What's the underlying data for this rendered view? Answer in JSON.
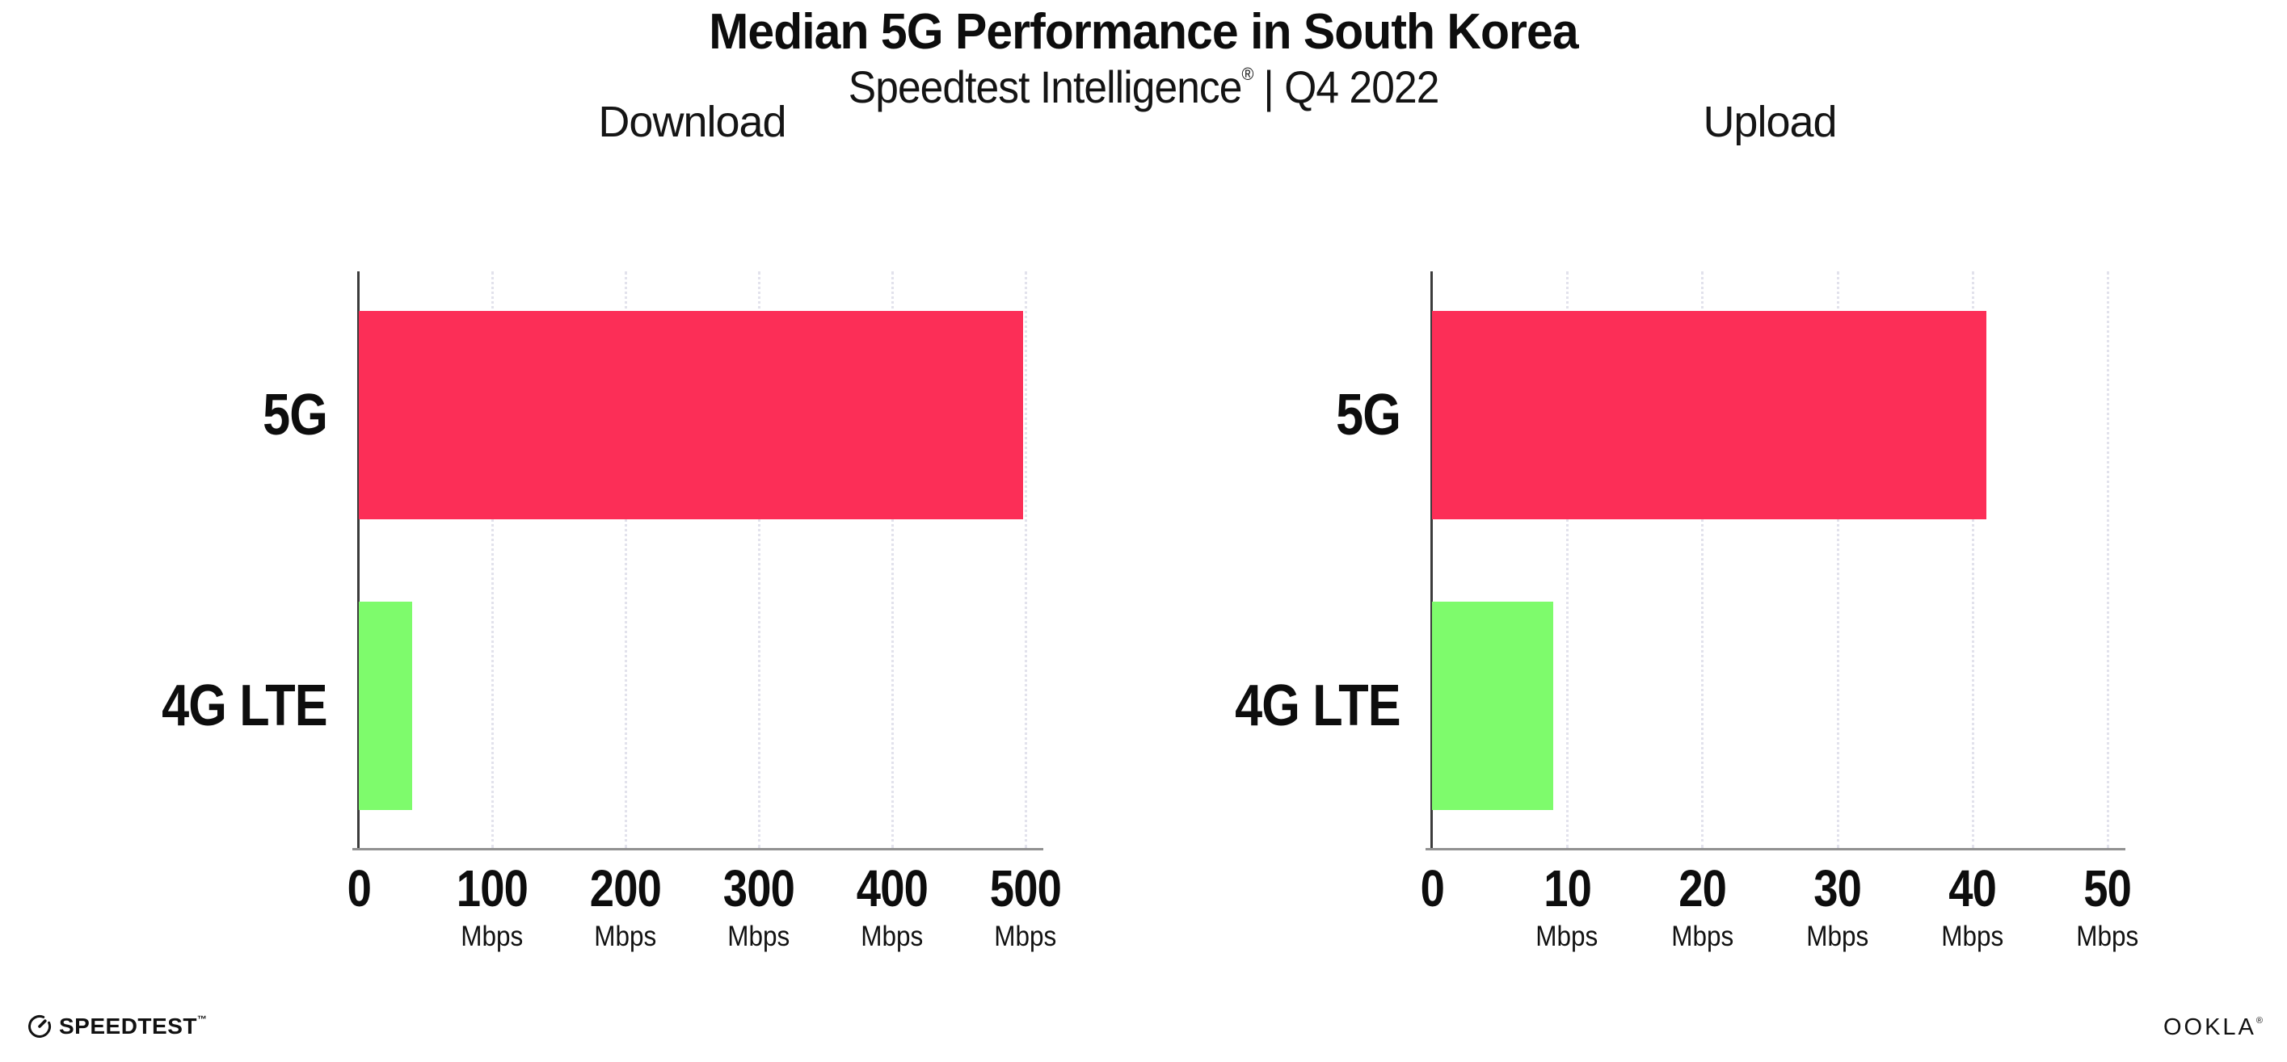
{
  "header": {
    "title": "Median 5G Performance in South Korea",
    "subtitle_brand": "Speedtest Intelligence",
    "subtitle_reg": "®",
    "subtitle_rest": "| Q4 2022"
  },
  "chart_data": [
    {
      "type": "bar",
      "orientation": "horizontal",
      "title": "Download",
      "categories": [
        "5G",
        "4G LTE"
      ],
      "values": [
        498,
        40
      ],
      "unit": "Mbps",
      "xlim": [
        0,
        500
      ],
      "xticks": [
        0,
        100,
        200,
        300,
        400,
        500
      ],
      "bar_colors": [
        "#fc2e57",
        "#7efb6c"
      ],
      "grid": "dotted-vertical",
      "legend": "none"
    },
    {
      "type": "bar",
      "orientation": "horizontal",
      "title": "Upload",
      "categories": [
        "5G",
        "4G LTE"
      ],
      "values": [
        41,
        9
      ],
      "unit": "Mbps",
      "xlim": [
        0,
        50
      ],
      "xticks": [
        0,
        10,
        20,
        30,
        40,
        50
      ],
      "bar_colors": [
        "#fc2e57",
        "#7efb6c"
      ],
      "grid": "dotted-vertical",
      "legend": "none"
    }
  ],
  "footer": {
    "speedtest_label": "SPEEDTEST",
    "speedtest_tm": "™",
    "ookla_label": "OOKLA",
    "ookla_reg": "®"
  },
  "colors": {
    "bar_5g": "#fc2e57",
    "bar_4g_lte": "#7efb6c",
    "grid": "#e2e2ec",
    "y_axis": "#3b3b3b",
    "x_axis": "#919191",
    "text": "#0d0d0d",
    "background": "#ffffff"
  }
}
